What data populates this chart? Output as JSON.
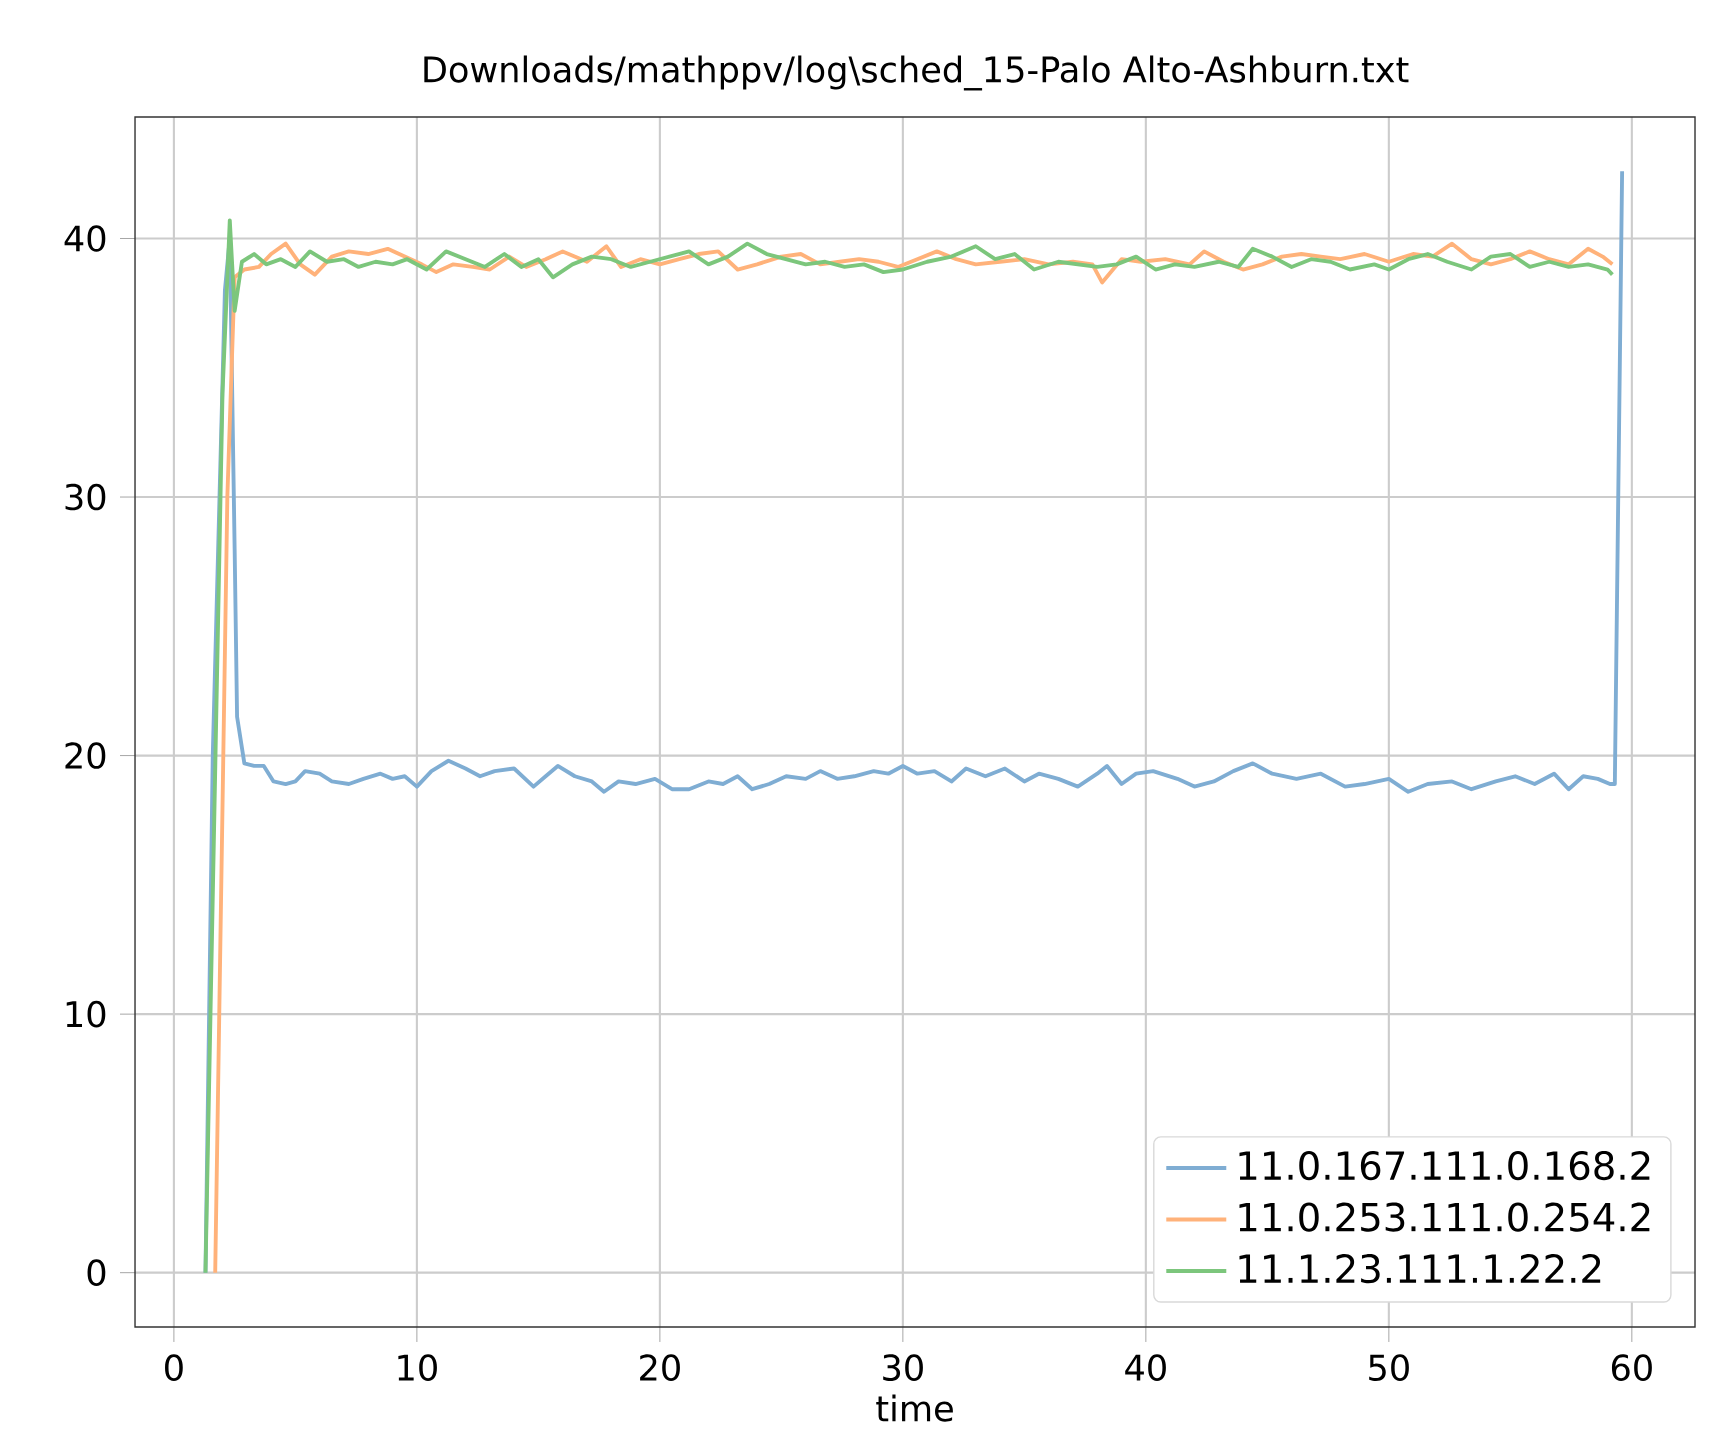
{
  "chart_data": {
    "type": "line",
    "title": "Downloads/mathppv/log\\sched_15-Palo Alto-Ashburn.txt",
    "xlabel": "time",
    "xlim": [
      -1.6,
      62.6
    ],
    "ylim": [
      -2.1,
      44.7
    ],
    "xticks": [
      0,
      10,
      20,
      30,
      40,
      50,
      60
    ],
    "yticks": [
      0,
      10,
      20,
      30,
      40
    ],
    "grid": true,
    "legend": "bottom right",
    "series": [
      {
        "name": "11.0.167.111.0.168.2",
        "color": "#7fadd3",
        "x": [
          1.3,
          1.6,
          2.1,
          2.3,
          2.5,
          2.6,
          2.9,
          3.3,
          3.7,
          4.1,
          4.6,
          5.0,
          5.4,
          6.0,
          6.5,
          7.2,
          7.8,
          8.5,
          9.0,
          9.5,
          10.0,
          10.6,
          11.3,
          12.0,
          12.6,
          13.2,
          14.0,
          14.8,
          15.3,
          15.8,
          16.5,
          17.2,
          17.7,
          18.3,
          19.0,
          19.8,
          20.5,
          21.2,
          22.0,
          22.6,
          23.2,
          23.8,
          24.5,
          25.2,
          26.0,
          26.6,
          27.3,
          28.0,
          28.8,
          29.4,
          30.0,
          30.6,
          31.3,
          32.0,
          32.6,
          33.4,
          34.2,
          35.0,
          35.6,
          36.4,
          37.2,
          38.0,
          38.4,
          39.0,
          39.6,
          40.3,
          41.3,
          42.0,
          42.8,
          43.6,
          44.4,
          45.2,
          46.2,
          47.2,
          48.2,
          49.0,
          50.0,
          50.8,
          51.6,
          52.6,
          53.4,
          54.4,
          55.2,
          56.0,
          56.8,
          57.4,
          58.0,
          58.6,
          59.1,
          59.3,
          59.6
        ],
        "values": [
          0,
          20,
          38,
          40,
          28,
          21.5,
          19.7,
          19.6,
          19.6,
          19.0,
          18.9,
          19.0,
          19.4,
          19.3,
          19.0,
          18.9,
          19.1,
          19.3,
          19.1,
          19.2,
          18.8,
          19.4,
          19.8,
          19.5,
          19.2,
          19.4,
          19.5,
          18.8,
          19.2,
          19.6,
          19.2,
          19.0,
          18.6,
          19.0,
          18.9,
          19.1,
          18.7,
          18.7,
          19.0,
          18.9,
          19.2,
          18.7,
          18.9,
          19.2,
          19.1,
          19.4,
          19.1,
          19.2,
          19.4,
          19.3,
          19.6,
          19.3,
          19.4,
          19.0,
          19.5,
          19.2,
          19.5,
          19.0,
          19.3,
          19.1,
          18.8,
          19.3,
          19.6,
          18.9,
          19.3,
          19.4,
          19.1,
          18.8,
          19.0,
          19.4,
          19.7,
          19.3,
          19.1,
          19.3,
          18.8,
          18.9,
          19.1,
          18.6,
          18.9,
          19.0,
          18.7,
          19.0,
          19.2,
          18.9,
          19.3,
          18.7,
          19.2,
          19.1,
          18.9,
          18.9,
          42.6
        ]
      },
      {
        "name": "11.0.253.111.0.254.2",
        "color": "#ffb27a",
        "x": [
          1.7,
          2.2,
          2.5,
          2.9,
          3.5,
          4.0,
          4.6,
          5.2,
          5.8,
          6.5,
          7.2,
          8.0,
          8.8,
          9.5,
          10.2,
          10.8,
          11.5,
          12.3,
          13.0,
          13.8,
          14.5,
          15.3,
          16.0,
          17.0,
          17.8,
          18.4,
          19.2,
          20.0,
          20.8,
          21.6,
          22.4,
          23.2,
          24.0,
          25.0,
          25.8,
          26.6,
          27.4,
          28.2,
          29.0,
          29.8,
          30.6,
          31.4,
          32.2,
          33.0,
          34.0,
          35.0,
          36.0,
          37.0,
          37.8,
          38.2,
          39.0,
          39.8,
          40.8,
          41.8,
          42.4,
          43.2,
          44.0,
          44.8,
          45.6,
          46.4,
          47.2,
          48.0,
          49.0,
          50.0,
          51.0,
          51.8,
          52.6,
          53.4,
          54.2,
          55.0,
          55.8,
          56.6,
          57.4,
          58.2,
          58.8,
          59.2
        ],
        "values": [
          0,
          30,
          38.5,
          38.8,
          38.9,
          39.4,
          39.8,
          39.0,
          38.6,
          39.3,
          39.5,
          39.4,
          39.6,
          39.3,
          39.0,
          38.7,
          39.0,
          38.9,
          38.8,
          39.3,
          38.9,
          39.2,
          39.5,
          39.1,
          39.7,
          38.9,
          39.2,
          39.0,
          39.2,
          39.4,
          39.5,
          38.8,
          39.0,
          39.3,
          39.4,
          39.0,
          39.1,
          39.2,
          39.1,
          38.9,
          39.2,
          39.5,
          39.2,
          39.0,
          39.1,
          39.2,
          39.0,
          39.1,
          39.0,
          38.3,
          39.2,
          39.1,
          39.2,
          39.0,
          39.5,
          39.1,
          38.8,
          39.0,
          39.3,
          39.4,
          39.3,
          39.2,
          39.4,
          39.1,
          39.4,
          39.3,
          39.8,
          39.2,
          39.0,
          39.2,
          39.5,
          39.2,
          39.0,
          39.6,
          39.3,
          39.0
        ]
      },
      {
        "name": "11.1.23.111.1.22.2",
        "color": "#7cc67c",
        "x": [
          1.3,
          2.0,
          2.3,
          2.5,
          2.8,
          3.3,
          3.8,
          4.4,
          5.0,
          5.6,
          6.3,
          7.0,
          7.6,
          8.3,
          9.0,
          9.6,
          10.4,
          11.2,
          12.0,
          12.8,
          13.6,
          14.3,
          15.0,
          15.6,
          16.4,
          17.2,
          18.0,
          18.8,
          19.6,
          20.4,
          21.2,
          22.0,
          22.8,
          23.6,
          24.4,
          25.2,
          26.0,
          26.8,
          27.6,
          28.4,
          29.2,
          30.0,
          31.0,
          32.0,
          33.0,
          33.8,
          34.6,
          35.4,
          36.4,
          37.2,
          38.0,
          38.8,
          39.6,
          40.4,
          41.2,
          42.0,
          43.0,
          43.8,
          44.4,
          45.2,
          46.0,
          46.8,
          47.6,
          48.4,
          49.4,
          50.0,
          50.8,
          51.6,
          52.4,
          53.4,
          54.2,
          55.0,
          55.8,
          56.6,
          57.4,
          58.2,
          59.0,
          59.2
        ],
        "values": [
          0,
          34,
          40.7,
          37.2,
          39.1,
          39.4,
          39.0,
          39.2,
          38.9,
          39.5,
          39.1,
          39.2,
          38.9,
          39.1,
          39.0,
          39.2,
          38.8,
          39.5,
          39.2,
          38.9,
          39.4,
          38.9,
          39.2,
          38.5,
          39.0,
          39.3,
          39.2,
          38.9,
          39.1,
          39.3,
          39.5,
          39.0,
          39.3,
          39.8,
          39.4,
          39.2,
          39.0,
          39.1,
          38.9,
          39.0,
          38.7,
          38.8,
          39.1,
          39.3,
          39.7,
          39.2,
          39.4,
          38.8,
          39.1,
          39.0,
          38.9,
          39.0,
          39.3,
          38.8,
          39.0,
          38.9,
          39.1,
          38.9,
          39.6,
          39.3,
          38.9,
          39.2,
          39.1,
          38.8,
          39.0,
          38.8,
          39.2,
          39.4,
          39.1,
          38.8,
          39.3,
          39.4,
          38.9,
          39.1,
          38.9,
          39.0,
          38.8,
          38.6
        ]
      }
    ]
  }
}
